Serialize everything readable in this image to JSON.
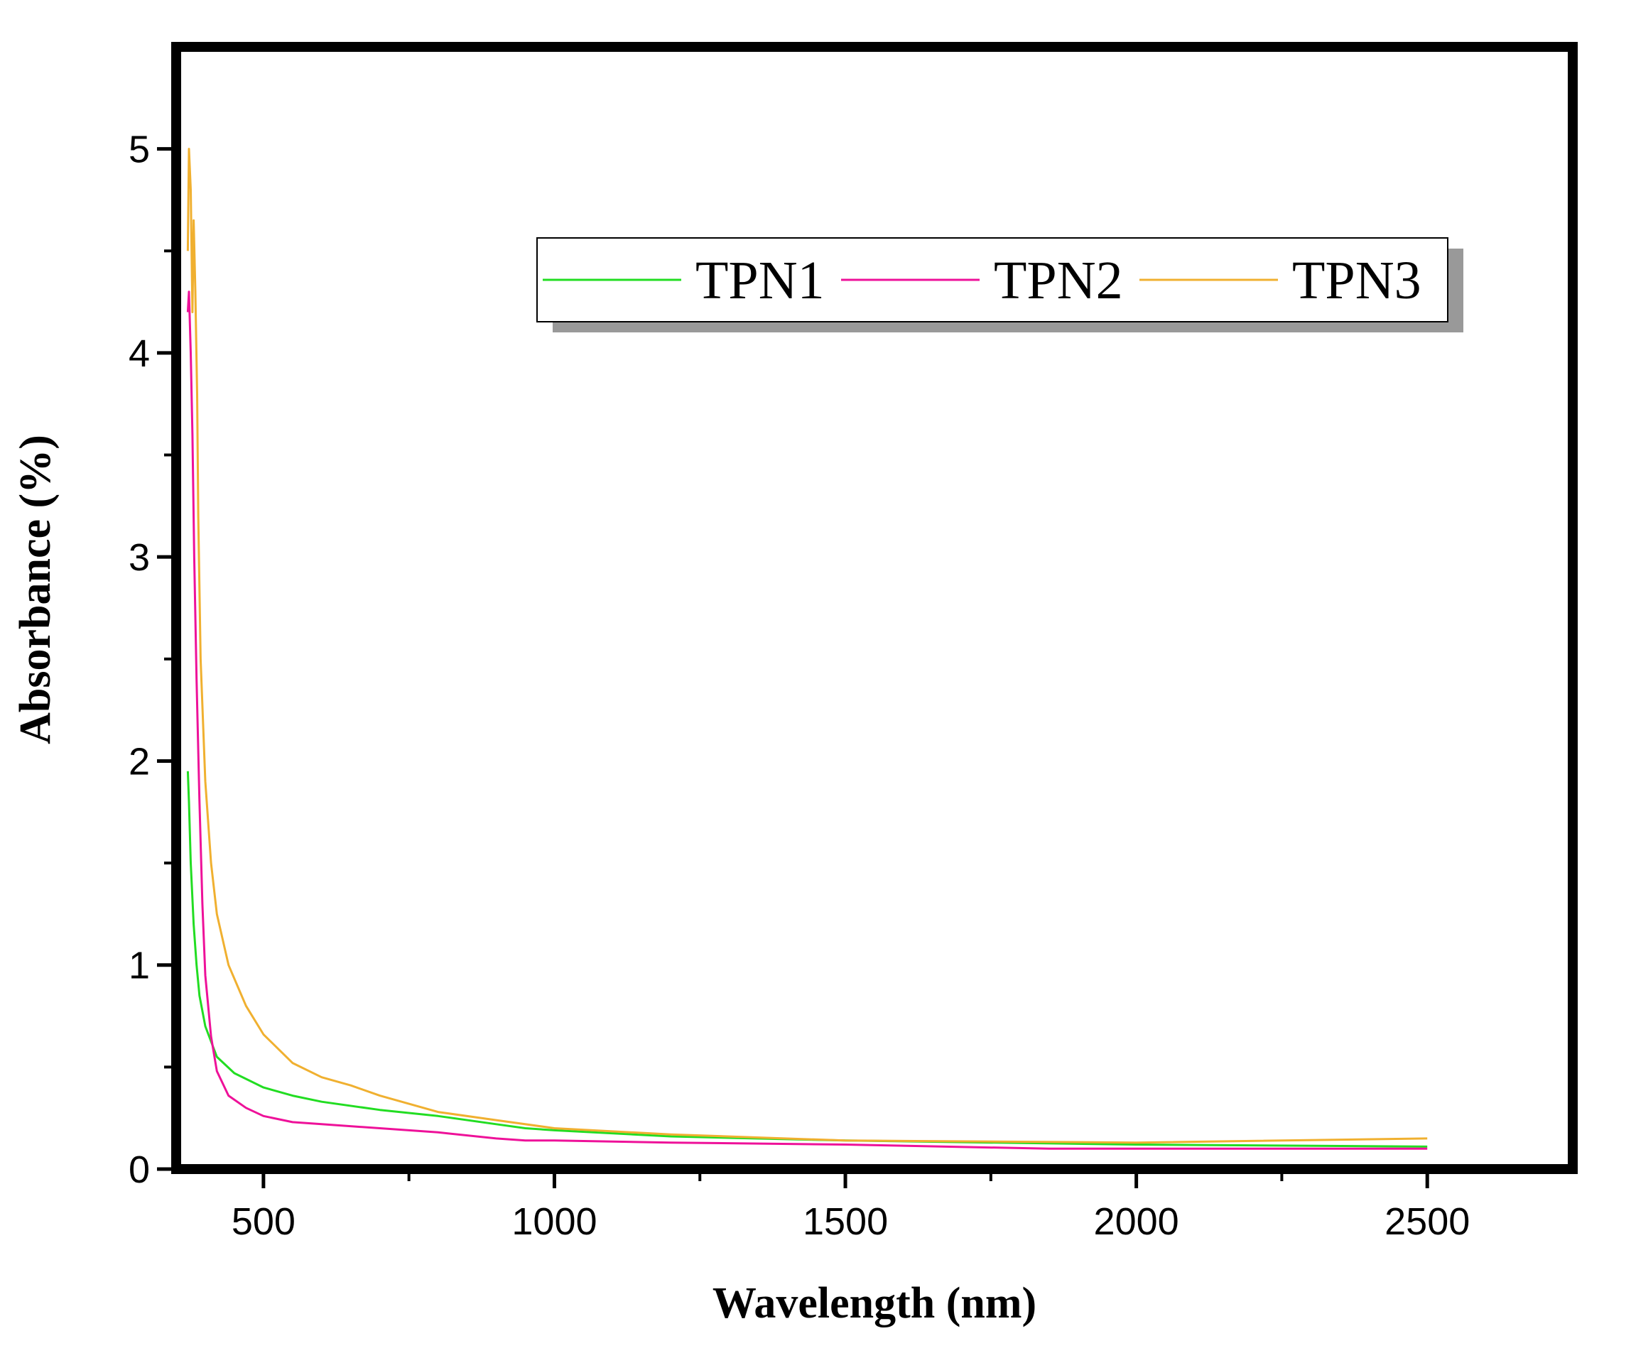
{
  "chart_data": {
    "type": "line",
    "title": "",
    "xlabel": "Wavelength (nm)",
    "ylabel": "Absorbance (%)",
    "xlim": [
      350,
      2750
    ],
    "ylim": [
      0,
      5.5
    ],
    "xticks": [
      500,
      1000,
      1500,
      2000,
      2500
    ],
    "yticks": [
      0,
      1,
      2,
      3,
      4,
      5
    ],
    "grid": false,
    "legend_position": "top-right",
    "series": [
      {
        "name": "TPN1",
        "color": "#22dd22",
        "x": [
          370,
          372,
          375,
          380,
          385,
          390,
          400,
          420,
          450,
          500,
          550,
          600,
          700,
          800,
          900,
          950,
          1000,
          1200,
          1500,
          2000,
          2500
        ],
        "y": [
          1.95,
          1.8,
          1.5,
          1.2,
          1.0,
          0.85,
          0.7,
          0.55,
          0.47,
          0.4,
          0.36,
          0.33,
          0.29,
          0.26,
          0.22,
          0.2,
          0.19,
          0.16,
          0.14,
          0.12,
          0.11
        ]
      },
      {
        "name": "TPN2",
        "color": "#ee1199",
        "x": [
          370,
          372,
          375,
          378,
          381,
          385,
          390,
          395,
          400,
          410,
          420,
          440,
          470,
          500,
          550,
          600,
          700,
          800,
          900,
          950,
          1000,
          1200,
          1500,
          1850,
          2000,
          2500
        ],
        "y": [
          4.2,
          4.3,
          4.0,
          3.6,
          3.0,
          2.4,
          1.8,
          1.3,
          0.95,
          0.65,
          0.48,
          0.36,
          0.3,
          0.26,
          0.23,
          0.22,
          0.2,
          0.18,
          0.15,
          0.14,
          0.14,
          0.13,
          0.12,
          0.1,
          0.1,
          0.1
        ]
      },
      {
        "name": "TPN3",
        "color": "#f0b030",
        "x": [
          370,
          372,
          375,
          378,
          380,
          383,
          386,
          388,
          392,
          400,
          410,
          420,
          440,
          470,
          500,
          550,
          600,
          650,
          700,
          800,
          900,
          1000,
          1200,
          1500,
          2000,
          2500
        ],
        "y": [
          4.5,
          5.0,
          4.8,
          4.2,
          4.65,
          4.3,
          3.8,
          3.2,
          2.5,
          1.9,
          1.5,
          1.25,
          1.0,
          0.8,
          0.66,
          0.52,
          0.45,
          0.41,
          0.36,
          0.28,
          0.24,
          0.2,
          0.17,
          0.14,
          0.13,
          0.15
        ]
      }
    ]
  }
}
